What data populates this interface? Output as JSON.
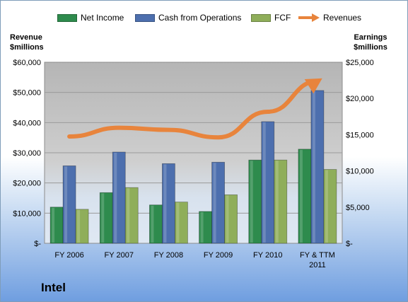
{
  "chart_data": {
    "type": "bar",
    "categories": [
      "FY 2006",
      "FY 2007",
      "FY 2008",
      "FY 2009",
      "FY 2010",
      "FY & TTM 2011"
    ],
    "series": [
      {
        "name": "Net Income",
        "axis": "right",
        "color": "#2e8b4d",
        "values": [
          5000,
          7000,
          5300,
          4400,
          11500,
          13000
        ]
      },
      {
        "name": "Cash from Operations",
        "axis": "right",
        "color": "#4d6fae",
        "values": [
          10700,
          12600,
          11000,
          11200,
          16800,
          21100
        ]
      },
      {
        "name": "FCF",
        "axis": "right",
        "color": "#8fae5a",
        "values": [
          4700,
          7700,
          5700,
          6700,
          11500,
          10200
        ]
      },
      {
        "name": "Revenues",
        "axis": "left",
        "type": "line",
        "color": "#e8843c",
        "values": [
          35400,
          38300,
          37600,
          35100,
          43600,
          53700
        ]
      }
    ],
    "left_axis": {
      "title_line1": "Revenue",
      "title_line2": "$millions",
      "ylim": [
        0,
        60000
      ],
      "ticks": [
        "$-",
        "$10,000",
        "$20,000",
        "$30,000",
        "$40,000",
        "$50,000",
        "$60,000"
      ]
    },
    "right_axis": {
      "title_line1": "Earnings",
      "title_line2": "$millions",
      "ylim": [
        0,
        25000
      ],
      "ticks": [
        "$-",
        "$5,000",
        "$10,000",
        "$15,000",
        "$20,000",
        "$25,000"
      ]
    },
    "legend_position": "top",
    "grid": true
  },
  "company": "Intel"
}
